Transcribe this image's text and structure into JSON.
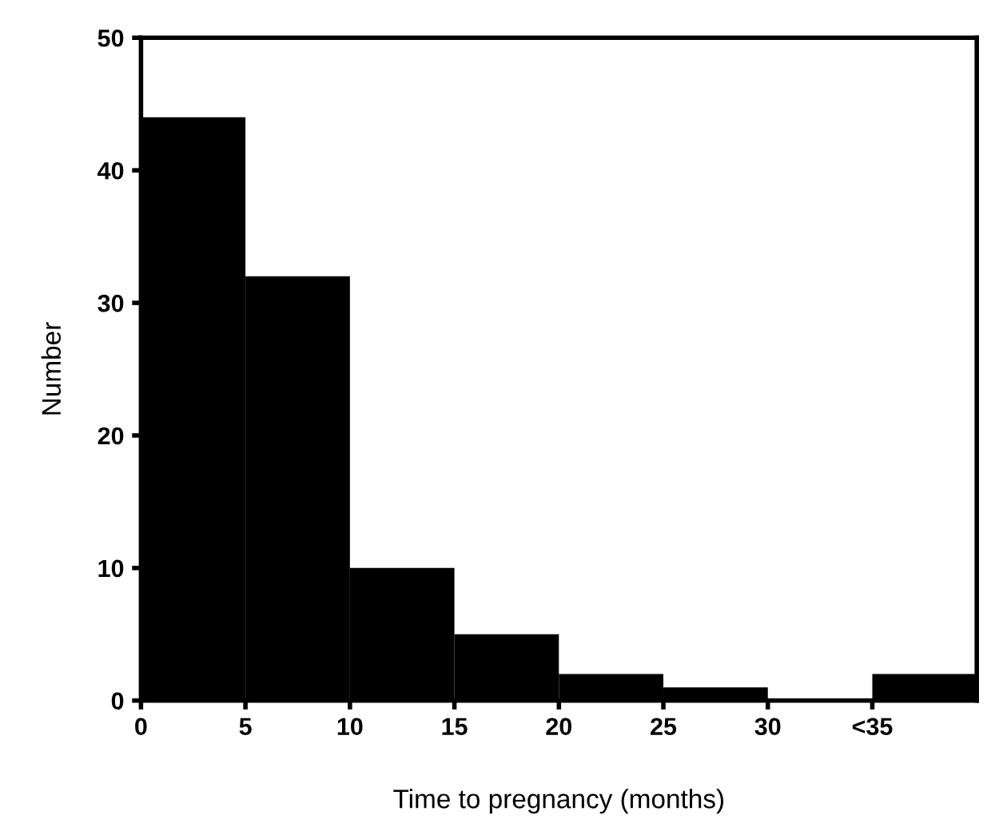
{
  "chart_data": {
    "type": "histogram",
    "xlabel": "Time to pregnancy (months)",
    "ylabel": "Number",
    "bins": [
      0,
      5,
      10,
      15,
      20,
      25,
      30,
      35,
      40
    ],
    "values": [
      44,
      32,
      10,
      5,
      2,
      1,
      0,
      2
    ],
    "color": "#000000",
    "xlim": [
      0,
      40
    ],
    "ylim": [
      0,
      50
    ],
    "xticks": [
      0,
      5,
      10,
      15,
      20,
      25,
      30,
      {
        "value": 35,
        "label": "<35"
      }
    ],
    "yticks": [
      0,
      10,
      20,
      30,
      40,
      50
    ],
    "grid": false
  }
}
